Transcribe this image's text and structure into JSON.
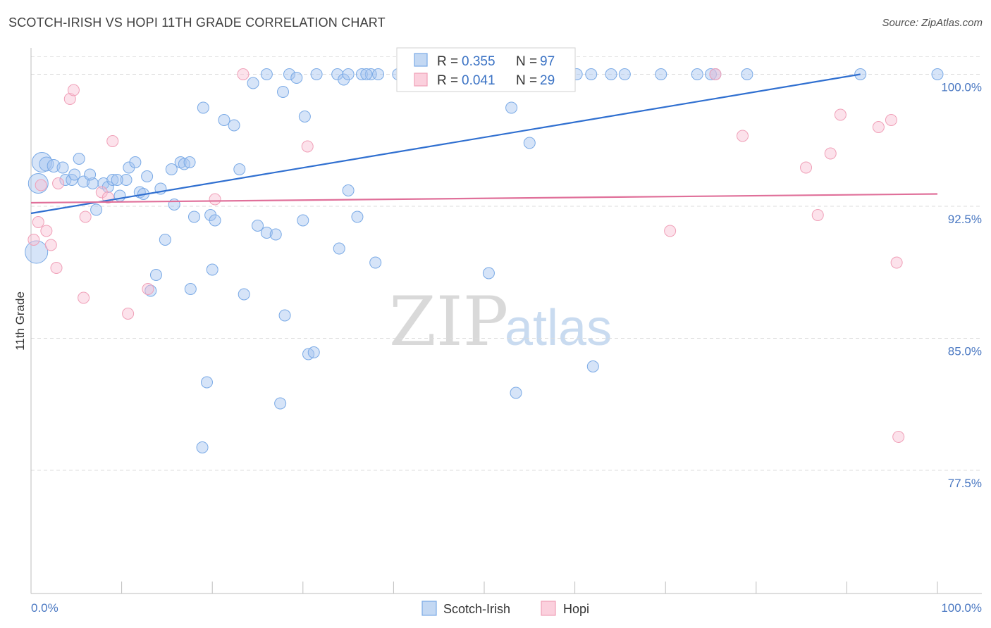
{
  "header": {
    "title": "SCOTCH-IRISH VS HOPI 11TH GRADE CORRELATION CHART",
    "source": "Source: ZipAtlas.com"
  },
  "watermark": {
    "zip": "ZIP",
    "atlas": "atlas"
  },
  "legend_box": {
    "r_label": "R =",
    "n_label": "N =",
    "rows": [
      {
        "r": "0.355",
        "n": "97",
        "color": "#7aaae6"
      },
      {
        "r": "0.041",
        "n": "29",
        "color": "#f0a0b8"
      }
    ]
  },
  "bottom_legend": [
    {
      "label": "Scotch-Irish",
      "color": "#7aaae6"
    },
    {
      "label": "Hopi",
      "color": "#f0a0b8"
    }
  ],
  "chart_data": {
    "type": "scatter",
    "title": "SCOTCH-IRISH VS HOPI 11TH GRADE CORRELATION CHART",
    "ylabel": "11th Grade",
    "xlabel": "",
    "xlim": [
      0,
      100
    ],
    "ylim": [
      70.5,
      101.5
    ],
    "x_tick_labels": [
      "0.0%",
      "100.0%"
    ],
    "y_ticks": [
      100.0,
      92.5,
      85.0,
      77.5
    ],
    "y_tick_labels": [
      "100.0%",
      "92.5%",
      "85.0%",
      "77.5%"
    ],
    "grid": true,
    "colors": {
      "scotch_irish": "#7aaae6",
      "hopi": "#f0a0b8",
      "scotch_irish_line": "#2f6fd0",
      "hopi_line": "#e0709a"
    },
    "series": [
      {
        "name": "Scotch-Irish",
        "R": 0.355,
        "N": 97,
        "trend": [
          [
            0,
            92.1
          ],
          [
            91.5,
            100.0
          ]
        ],
        "points": [
          [
            1.2,
            95.0,
            14
          ],
          [
            1.7,
            94.9,
            10
          ],
          [
            2.5,
            94.8,
            9
          ],
          [
            3.5,
            94.7,
            8
          ],
          [
            5.3,
            95.2,
            8
          ],
          [
            3.8,
            94.0,
            8
          ],
          [
            4.5,
            94.0,
            8
          ],
          [
            4.8,
            94.3,
            8
          ],
          [
            5.8,
            93.9,
            8
          ],
          [
            6.8,
            93.8,
            8
          ],
          [
            6.5,
            94.3,
            8
          ],
          [
            8.0,
            93.8,
            8
          ],
          [
            8.5,
            93.6,
            8
          ],
          [
            9.0,
            94.0,
            8
          ],
          [
            10.5,
            94.0,
            8
          ],
          [
            9.5,
            94.0,
            8
          ],
          [
            10.8,
            94.7,
            8
          ],
          [
            11.5,
            95.0,
            8
          ],
          [
            12.8,
            94.2,
            8
          ],
          [
            12.0,
            93.3,
            8
          ],
          [
            12.4,
            93.2,
            8
          ],
          [
            14.3,
            93.5,
            8
          ],
          [
            15.5,
            94.6,
            8
          ],
          [
            16.5,
            95.0,
            8
          ],
          [
            16.9,
            94.9,
            8
          ],
          [
            17.5,
            95.0,
            8
          ],
          [
            7.2,
            92.3,
            8
          ],
          [
            9.8,
            93.1,
            8
          ],
          [
            15.8,
            92.6,
            8
          ],
          [
            18.0,
            91.9,
            8
          ],
          [
            19.8,
            92.0,
            8
          ],
          [
            20.3,
            91.7,
            8
          ],
          [
            19.0,
            98.1,
            8
          ],
          [
            21.3,
            97.4,
            8
          ],
          [
            22.4,
            97.1,
            8
          ],
          [
            23.0,
            94.6,
            8
          ],
          [
            24.5,
            99.5,
            8
          ],
          [
            26.0,
            100.0,
            8
          ],
          [
            27.8,
            99.0,
            8
          ],
          [
            28.5,
            100.0,
            8
          ],
          [
            29.3,
            99.8,
            8
          ],
          [
            30.2,
            97.6,
            8
          ],
          [
            31.5,
            100.0,
            8
          ],
          [
            33.8,
            100.0,
            8
          ],
          [
            34.5,
            99.7,
            8
          ],
          [
            35.0,
            100.0,
            8
          ],
          [
            36.5,
            100.0,
            8
          ],
          [
            37.5,
            100.0,
            8
          ],
          [
            37.0,
            100.0,
            8
          ],
          [
            38.3,
            100.0,
            8
          ],
          [
            40.5,
            100.0,
            8
          ],
          [
            42.0,
            100.0,
            8
          ],
          [
            43.0,
            100.0,
            8
          ],
          [
            44.5,
            100.0,
            8
          ],
          [
            46.0,
            100.0,
            8
          ],
          [
            47.5,
            100.0,
            8
          ],
          [
            49.5,
            100.0,
            8
          ],
          [
            51.0,
            100.0,
            8
          ],
          [
            52.0,
            100.0,
            8
          ],
          [
            53.5,
            100.0,
            8
          ],
          [
            55.0,
            100.0,
            8
          ],
          [
            56.0,
            100.0,
            8
          ],
          [
            57.5,
            100.0,
            8
          ],
          [
            59.0,
            100.0,
            8
          ],
          [
            60.2,
            100.0,
            8
          ],
          [
            61.8,
            100.0,
            8
          ],
          [
            64.0,
            100.0,
            8
          ],
          [
            65.5,
            100.0,
            8
          ],
          [
            69.5,
            100.0,
            8
          ],
          [
            73.5,
            100.0,
            8
          ],
          [
            75.0,
            100.0,
            8
          ],
          [
            75.5,
            100.0,
            8
          ],
          [
            79.0,
            100.0,
            8
          ],
          [
            91.5,
            100.0,
            8
          ],
          [
            100.0,
            100.0,
            8
          ],
          [
            55.0,
            96.1,
            8
          ],
          [
            53.0,
            98.1,
            8
          ],
          [
            35.0,
            93.4,
            8
          ],
          [
            36.0,
            91.9,
            8
          ],
          [
            25.0,
            91.4,
            8
          ],
          [
            26.0,
            91.0,
            8
          ],
          [
            27.0,
            90.9,
            8
          ],
          [
            30.0,
            91.7,
            8
          ],
          [
            34.0,
            90.1,
            8
          ],
          [
            38.0,
            89.3,
            8
          ],
          [
            14.8,
            90.6,
            8
          ],
          [
            13.8,
            88.6,
            8
          ],
          [
            13.2,
            87.7,
            8
          ],
          [
            17.6,
            87.8,
            8
          ],
          [
            20.0,
            88.9,
            8
          ],
          [
            23.5,
            87.5,
            8
          ],
          [
            28.0,
            86.3,
            8
          ],
          [
            30.6,
            84.1,
            8
          ],
          [
            31.2,
            84.2,
            8
          ],
          [
            19.4,
            82.5,
            8
          ],
          [
            27.5,
            81.3,
            8
          ],
          [
            18.9,
            78.8,
            8
          ],
          [
            53.5,
            81.9,
            8
          ],
          [
            62.0,
            83.4,
            8
          ],
          [
            50.5,
            88.7,
            8
          ],
          [
            0.6,
            89.9,
            16
          ],
          [
            0.8,
            93.8,
            14
          ]
        ]
      },
      {
        "name": "Hopi",
        "R": 0.041,
        "N": 29,
        "trend": [
          [
            0,
            92.7
          ],
          [
            100,
            93.2
          ]
        ],
        "points": [
          [
            0.3,
            90.6,
            8
          ],
          [
            0.8,
            91.6,
            8
          ],
          [
            1.1,
            93.7,
            8
          ],
          [
            1.7,
            91.1,
            8
          ],
          [
            2.2,
            90.3,
            8
          ],
          [
            2.8,
            89.0,
            8
          ],
          [
            3.0,
            93.8,
            8
          ],
          [
            4.3,
            98.6,
            8
          ],
          [
            4.7,
            99.1,
            8
          ],
          [
            5.8,
            87.3,
            8
          ],
          [
            6.0,
            91.9,
            8
          ],
          [
            7.8,
            93.3,
            8
          ],
          [
            8.5,
            93.0,
            8
          ],
          [
            9.0,
            96.2,
            8
          ],
          [
            10.7,
            86.4,
            8
          ],
          [
            12.9,
            87.8,
            8
          ],
          [
            20.3,
            92.9,
            8
          ],
          [
            23.4,
            100.0,
            8
          ],
          [
            30.5,
            95.9,
            8
          ],
          [
            56.8,
            100.0,
            8
          ],
          [
            56.2,
            100.0,
            8
          ],
          [
            70.5,
            91.1,
            8
          ],
          [
            75.5,
            100.0,
            8
          ],
          [
            78.5,
            96.5,
            8
          ],
          [
            85.5,
            94.7,
            8
          ],
          [
            86.8,
            92.0,
            8
          ],
          [
            88.2,
            95.5,
            8
          ],
          [
            89.3,
            97.7,
            8
          ],
          [
            93.5,
            97.0,
            8
          ],
          [
            94.9,
            97.4,
            8
          ],
          [
            95.5,
            89.3,
            8
          ],
          [
            95.7,
            79.4,
            8
          ]
        ]
      }
    ]
  }
}
